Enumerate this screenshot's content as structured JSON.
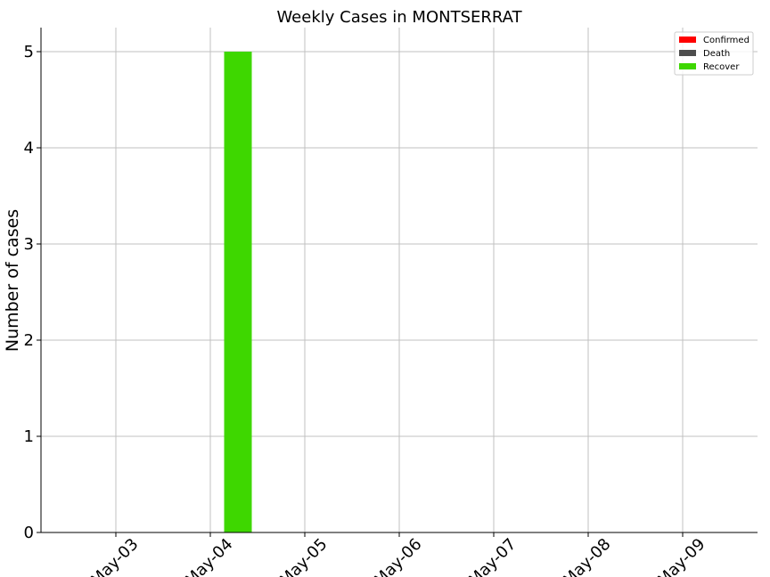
{
  "chart_data": {
    "type": "bar",
    "title": "Weekly Cases in MONTSERRAT",
    "xlabel": "",
    "ylabel": "Number of cases",
    "categories": [
      "May-03",
      "May-04",
      "May-05",
      "May-06",
      "May-07",
      "May-08",
      "May-09"
    ],
    "series": [
      {
        "name": "Confirmed",
        "color": "#ff0000",
        "values": [
          0,
          0,
          0,
          0,
          0,
          0,
          0
        ]
      },
      {
        "name": "Death",
        "color": "#4d4d4d",
        "values": [
          0,
          0,
          0,
          0,
          0,
          0,
          0
        ]
      },
      {
        "name": "Recover",
        "color": "#3ed700",
        "values": [
          0,
          5,
          0,
          0,
          0,
          0,
          0
        ]
      }
    ],
    "yticks": [
      "0",
      "1",
      "2",
      "3",
      "4",
      "5"
    ],
    "ylim": [
      0,
      5.25
    ],
    "grid": true,
    "legend_position": "top-right"
  }
}
